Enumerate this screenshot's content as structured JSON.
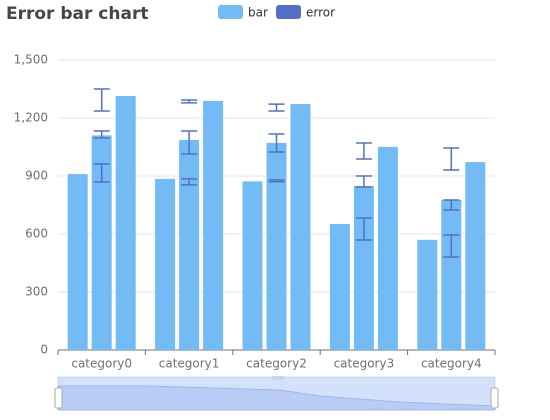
{
  "chart_data": {
    "type": "bar",
    "title": "Error bar chart",
    "categories": [
      "category0",
      "category1",
      "category2",
      "category3",
      "category4"
    ],
    "series": [
      {
        "name": "bar",
        "color": "#73bbf5",
        "values": [
          910,
          885,
          872,
          652,
          570
        ]
      },
      {
        "name": "bar",
        "color": "#73bbf5",
        "values": [
          1110,
          1086,
          1071,
          848,
          776
        ]
      },
      {
        "name": "bar",
        "color": "#73bbf5",
        "values": [
          1314,
          1288,
          1272,
          1050,
          972
        ]
      }
    ],
    "errors": {
      "name": "error",
      "color": "#5470c6",
      "series": [
        {
          "low": [
            869,
            854,
            870,
            569,
            481
          ],
          "high": [
            962,
            885,
            880,
            683,
            595
          ]
        },
        {
          "low": [
            1097,
            1014,
            1024,
            843,
            724
          ],
          "high": [
            1133,
            1133,
            1117,
            900,
            776
          ]
        },
        {
          "low": [
            1236,
            1278,
            1236,
            988,
            931
          ],
          "high": [
            1350,
            1293,
            1272,
            1071,
            1045
          ]
        }
      ]
    },
    "ylim": [
      0,
      1500
    ],
    "yticks": [
      0,
      300,
      600,
      900,
      {
        "value": 1200,
        "label": "1,200"
      },
      {
        "value": 1500,
        "label": "1,500"
      }
    ],
    "grid": true
  }
}
